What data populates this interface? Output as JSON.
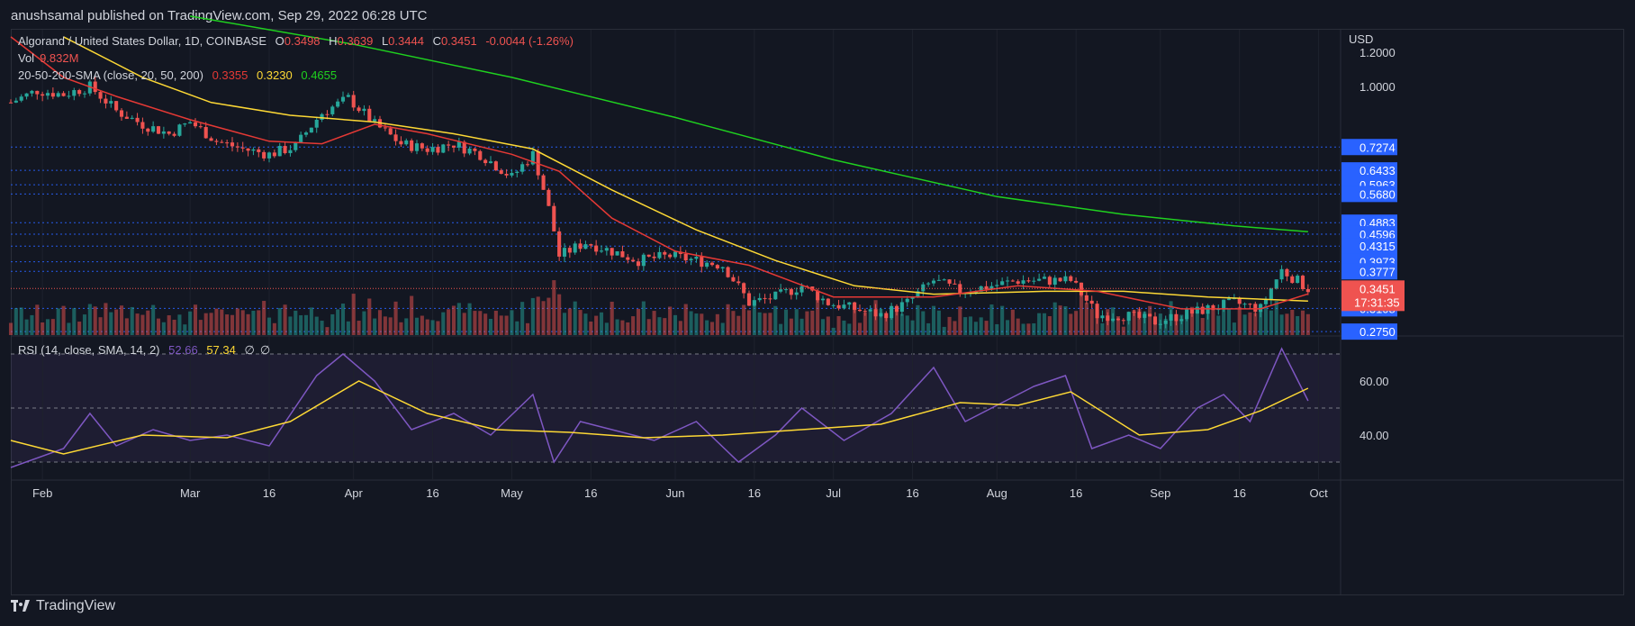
{
  "header": {
    "publisher": "anushsamal published on TradingView.com, Sep 29, 2022 06:28 UTC"
  },
  "legend": {
    "symbol": "Algorand / United States Dollar, 1D, COINBASE",
    "open_label": "O",
    "open": "0.3498",
    "high_label": "H",
    "high": "0.3639",
    "low_label": "L",
    "low": "0.3444",
    "close_label": "C",
    "close": "0.3451",
    "change": "-0.0044 (-1.26%)",
    "vol_label": "Vol",
    "vol": "9.832M",
    "sma_label": "20-50-200-SMA (close, 20, 50, 200)",
    "sma20": "0.3355",
    "sma50": "0.3230",
    "sma200": "0.4655"
  },
  "rsi_legend": {
    "label": "RSI (14, close, SMA, 14, 2)",
    "rsi": "52.66",
    "sma": "57.34",
    "e1": "∅",
    "e2": "∅"
  },
  "price_axis": {
    "currency": "USD",
    "ticks": [
      "1.2000",
      "1.0000"
    ],
    "levels": [
      "0.7274",
      "0.6433",
      "0.5963",
      "0.5680",
      "0.4883",
      "0.4596",
      "0.4315",
      "0.3973",
      "0.3777",
      "0.3108",
      "0.2750"
    ],
    "last_price": "0.3451",
    "countdown": "17:31:35"
  },
  "rsi_axis": {
    "ticks": [
      "60.00",
      "40.00"
    ]
  },
  "time_axis": [
    "Feb",
    "Mar",
    "16",
    "Apr",
    "16",
    "May",
    "16",
    "Jun",
    "16",
    "Jul",
    "16",
    "Aug",
    "16",
    "Sep",
    "16",
    "Oct"
  ],
  "footer": {
    "brand": "TradingView"
  },
  "colors": {
    "bg": "#131722",
    "up": "#26a69a",
    "down": "#ef5350",
    "sma20": "#e53935",
    "sma50": "#fdd835",
    "sma200": "#1fd11f",
    "rsi": "#7e57c2",
    "rsi_sma": "#fdd835",
    "level_line": "#2962ff",
    "level_label": "#2962ff",
    "last_price": "#ef5350"
  },
  "chart_data": {
    "type": "candlestick",
    "title": "Algorand / United States Dollar, 1D, COINBASE",
    "ylabel": "USD",
    "x_range": [
      "2022-01-26",
      "2022-10-05"
    ],
    "y_range_log": [
      0.27,
      1.35
    ],
    "support_resistance_levels": [
      0.7274,
      0.6433,
      0.5963,
      0.568,
      0.4883,
      0.4596,
      0.4315,
      0.3973,
      0.3777,
      0.3108,
      0.275
    ],
    "price_path": [
      [
        "2022-01-26",
        0.92
      ],
      [
        "2022-01-31",
        0.98
      ],
      [
        "2022-02-05",
        0.96
      ],
      [
        "2022-02-10",
        1.0
      ],
      [
        "2022-02-15",
        0.88
      ],
      [
        "2022-02-20",
        0.82
      ],
      [
        "2022-02-25",
        0.78
      ],
      [
        "2022-03-01",
        0.83
      ],
      [
        "2022-03-06",
        0.75
      ],
      [
        "2022-03-11",
        0.72
      ],
      [
        "2022-03-16",
        0.7
      ],
      [
        "2022-03-21",
        0.73
      ],
      [
        "2022-03-26",
        0.87
      ],
      [
        "2022-03-31",
        0.94
      ],
      [
        "2022-04-05",
        0.82
      ],
      [
        "2022-04-10",
        0.74
      ],
      [
        "2022-04-15",
        0.72
      ],
      [
        "2022-04-20",
        0.74
      ],
      [
        "2022-04-25",
        0.7
      ],
      [
        "2022-05-01",
        0.62
      ],
      [
        "2022-05-05",
        0.7
      ],
      [
        "2022-05-10",
        0.41
      ],
      [
        "2022-05-15",
        0.44
      ],
      [
        "2022-05-20",
        0.42
      ],
      [
        "2022-05-25",
        0.4
      ],
      [
        "2022-05-31",
        0.41
      ],
      [
        "2022-06-05",
        0.4
      ],
      [
        "2022-06-10",
        0.39
      ],
      [
        "2022-06-15",
        0.32
      ],
      [
        "2022-06-20",
        0.33
      ],
      [
        "2022-06-25",
        0.35
      ],
      [
        "2022-06-30",
        0.32
      ],
      [
        "2022-07-05",
        0.31
      ],
      [
        "2022-07-10",
        0.3
      ],
      [
        "2022-07-15",
        0.32
      ],
      [
        "2022-07-20",
        0.36
      ],
      [
        "2022-07-25",
        0.34
      ],
      [
        "2022-07-31",
        0.35
      ],
      [
        "2022-08-05",
        0.36
      ],
      [
        "2022-08-10",
        0.36
      ],
      [
        "2022-08-15",
        0.36
      ],
      [
        "2022-08-20",
        0.3
      ],
      [
        "2022-08-25",
        0.3
      ],
      [
        "2022-08-31",
        0.29
      ],
      [
        "2022-09-05",
        0.3
      ],
      [
        "2022-09-10",
        0.31
      ],
      [
        "2022-09-15",
        0.32
      ],
      [
        "2022-09-20",
        0.31
      ],
      [
        "2022-09-24",
        0.38
      ],
      [
        "2022-09-29",
        0.3451
      ]
    ],
    "sma20_path": [
      [
        "2022-01-26",
        1.3
      ],
      [
        "2022-02-05",
        1.05
      ],
      [
        "2022-02-15",
        0.95
      ],
      [
        "2022-03-01",
        0.84
      ],
      [
        "2022-03-16",
        0.75
      ],
      [
        "2022-03-26",
        0.74
      ],
      [
        "2022-04-05",
        0.82
      ],
      [
        "2022-04-15",
        0.78
      ],
      [
        "2022-05-01",
        0.7
      ],
      [
        "2022-05-10",
        0.64
      ],
      [
        "2022-05-20",
        0.5
      ],
      [
        "2022-06-01",
        0.42
      ],
      [
        "2022-06-15",
        0.39
      ],
      [
        "2022-07-01",
        0.33
      ],
      [
        "2022-07-20",
        0.33
      ],
      [
        "2022-08-05",
        0.35
      ],
      [
        "2022-08-20",
        0.34
      ],
      [
        "2022-09-05",
        0.31
      ],
      [
        "2022-09-20",
        0.31
      ],
      [
        "2022-09-29",
        0.3355
      ]
    ],
    "sma50_path": [
      [
        "2022-02-05",
        1.3
      ],
      [
        "2022-02-20",
        1.05
      ],
      [
        "2022-03-05",
        0.92
      ],
      [
        "2022-03-20",
        0.86
      ],
      [
        "2022-04-05",
        0.83
      ],
      [
        "2022-04-20",
        0.78
      ],
      [
        "2022-05-05",
        0.72
      ],
      [
        "2022-05-20",
        0.58
      ],
      [
        "2022-06-05",
        0.47
      ],
      [
        "2022-06-20",
        0.4
      ],
      [
        "2022-07-05",
        0.35
      ],
      [
        "2022-07-20",
        0.335
      ],
      [
        "2022-08-10",
        0.34
      ],
      [
        "2022-08-25",
        0.34
      ],
      [
        "2022-09-10",
        0.33
      ],
      [
        "2022-09-29",
        0.323
      ]
    ],
    "sma200_path": [
      [
        "2022-03-01",
        1.45
      ],
      [
        "2022-04-01",
        1.25
      ],
      [
        "2022-05-01",
        1.05
      ],
      [
        "2022-06-01",
        0.85
      ],
      [
        "2022-07-01",
        0.68
      ],
      [
        "2022-08-01",
        0.56
      ],
      [
        "2022-08-25",
        0.51
      ],
      [
        "2022-09-15",
        0.48
      ],
      [
        "2022-09-29",
        0.4655
      ]
    ],
    "rsi_range": [
      25,
      75
    ],
    "rsi_path": [
      [
        "2022-01-26",
        28
      ],
      [
        "2022-02-05",
        35
      ],
      [
        "2022-02-10",
        48
      ],
      [
        "2022-02-15",
        36
      ],
      [
        "2022-02-22",
        42
      ],
      [
        "2022-03-01",
        38
      ],
      [
        "2022-03-08",
        40
      ],
      [
        "2022-03-16",
        36
      ],
      [
        "2022-03-25",
        62
      ],
      [
        "2022-03-30",
        70
      ],
      [
        "2022-04-05",
        60
      ],
      [
        "2022-04-12",
        42
      ],
      [
        "2022-04-20",
        48
      ],
      [
        "2022-04-27",
        40
      ],
      [
        "2022-05-05",
        55
      ],
      [
        "2022-05-09",
        30
      ],
      [
        "2022-05-14",
        45
      ],
      [
        "2022-05-20",
        42
      ],
      [
        "2022-05-28",
        38
      ],
      [
        "2022-06-05",
        45
      ],
      [
        "2022-06-13",
        30
      ],
      [
        "2022-06-20",
        40
      ],
      [
        "2022-06-25",
        50
      ],
      [
        "2022-07-03",
        38
      ],
      [
        "2022-07-12",
        48
      ],
      [
        "2022-07-20",
        65
      ],
      [
        "2022-07-26",
        45
      ],
      [
        "2022-08-02",
        52
      ],
      [
        "2022-08-08",
        58
      ],
      [
        "2022-08-14",
        62
      ],
      [
        "2022-08-19",
        35
      ],
      [
        "2022-08-26",
        40
      ],
      [
        "2022-09-01",
        35
      ],
      [
        "2022-09-08",
        50
      ],
      [
        "2022-09-13",
        55
      ],
      [
        "2022-09-18",
        45
      ],
      [
        "2022-09-24",
        72
      ],
      [
        "2022-09-29",
        52.66
      ]
    ],
    "rsi_sma_path": [
      [
        "2022-01-26",
        38
      ],
      [
        "2022-02-05",
        33
      ],
      [
        "2022-02-20",
        40
      ],
      [
        "2022-03-08",
        39
      ],
      [
        "2022-03-20",
        45
      ],
      [
        "2022-04-02",
        60
      ],
      [
        "2022-04-15",
        48
      ],
      [
        "2022-04-28",
        42
      ],
      [
        "2022-05-12",
        41
      ],
      [
        "2022-05-26",
        39
      ],
      [
        "2022-06-10",
        40
      ],
      [
        "2022-06-25",
        42
      ],
      [
        "2022-07-10",
        44
      ],
      [
        "2022-07-25",
        52
      ],
      [
        "2022-08-05",
        51
      ],
      [
        "2022-08-15",
        56
      ],
      [
        "2022-08-28",
        40
      ],
      [
        "2022-09-10",
        42
      ],
      [
        "2022-09-20",
        49
      ],
      [
        "2022-09-29",
        57.34
      ]
    ]
  }
}
